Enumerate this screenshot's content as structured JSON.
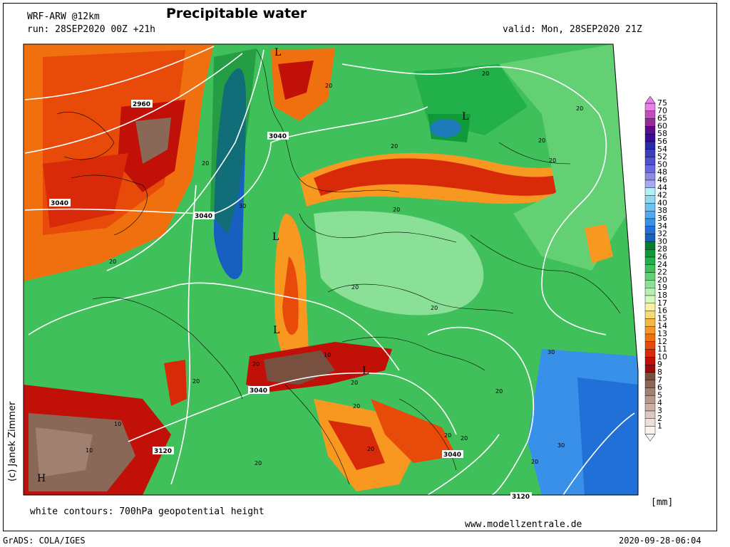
{
  "header": {
    "model": "WRF-ARW @12km",
    "title": "Precipitable water",
    "run": "run: 28SEP2020 00Z +21h",
    "valid": "valid: Mon, 28SEP2020 21Z"
  },
  "footer": {
    "contour_note": "white contours: 700hPa geopotential height",
    "website": "www.modellzentrale.de",
    "software": "GrADS: COLA/IGES",
    "timestamp": "2020-09-28-06:04"
  },
  "credit": "(c) Janek Zimmer",
  "colorbar": {
    "unit": "[mm]",
    "levels": [
      {
        "value": "75",
        "color": "#e880e8"
      },
      {
        "value": "70",
        "color": "#c050c0"
      },
      {
        "value": "65",
        "color": "#9a2a9a"
      },
      {
        "value": "60",
        "color": "#5a0a8a"
      },
      {
        "value": "58",
        "color": "#3a0a9a"
      },
      {
        "value": "56",
        "color": "#2a2aa8"
      },
      {
        "value": "54",
        "color": "#3a40c0"
      },
      {
        "value": "52",
        "color": "#5050d0"
      },
      {
        "value": "50",
        "color": "#6a6ae0"
      },
      {
        "value": "48",
        "color": "#8a8ae8"
      },
      {
        "value": "46",
        "color": "#a8a8f0"
      },
      {
        "value": "44",
        "color": "#b0f0f8"
      },
      {
        "value": "42",
        "color": "#90d8f0"
      },
      {
        "value": "40",
        "color": "#70c0f0"
      },
      {
        "value": "38",
        "color": "#50a8f0"
      },
      {
        "value": "36",
        "color": "#3890e8"
      },
      {
        "value": "34",
        "color": "#2070d8"
      },
      {
        "value": "32",
        "color": "#1860c0"
      },
      {
        "value": "30",
        "color": "#0a7a30"
      },
      {
        "value": "28",
        "color": "#0f9a3a"
      },
      {
        "value": "26",
        "color": "#22b04a"
      },
      {
        "value": "24",
        "color": "#40c05a"
      },
      {
        "value": "22",
        "color": "#64d074"
      },
      {
        "value": "20",
        "color": "#8ae096"
      },
      {
        "value": "19",
        "color": "#b4eeb0"
      },
      {
        "value": "18",
        "color": "#d8f6c0"
      },
      {
        "value": "17",
        "color": "#f8f0a0"
      },
      {
        "value": "16",
        "color": "#f8d870"
      },
      {
        "value": "15",
        "color": "#f8b840"
      },
      {
        "value": "14",
        "color": "#f89820"
      },
      {
        "value": "13",
        "color": "#f07010"
      },
      {
        "value": "12",
        "color": "#e84a0a"
      },
      {
        "value": "11",
        "color": "#d82a08"
      },
      {
        "value": "10",
        "color": "#c01008"
      },
      {
        "value": "9",
        "color": "#a00a0a"
      },
      {
        "value": "8",
        "color": "#785040"
      },
      {
        "value": "7",
        "color": "#8a6858"
      },
      {
        "value": "6",
        "color": "#a08070"
      },
      {
        "value": "5",
        "color": "#b89888"
      },
      {
        "value": "4",
        "color": "#ccb0a4"
      },
      {
        "value": "3",
        "color": "#dcc8c0"
      },
      {
        "value": "2",
        "color": "#ece0da"
      },
      {
        "value": "1",
        "color": "#f8f4f2"
      }
    ]
  },
  "contour_labels": [
    "2960",
    "3040",
    "3040",
    "3040",
    "3040",
    "3040",
    "3120",
    "3120"
  ],
  "pw_labels": [
    "20",
    "20",
    "20",
    "20",
    "20",
    "20",
    "20",
    "20",
    "20",
    "20",
    "20",
    "20",
    "20",
    "20",
    "20",
    "20",
    "20",
    "20",
    "20",
    "20",
    "20",
    "30",
    "30",
    "30",
    "10",
    "10",
    "10"
  ],
  "pressure_centers": [
    "L",
    "L",
    "L",
    "L",
    "L",
    "H"
  ]
}
